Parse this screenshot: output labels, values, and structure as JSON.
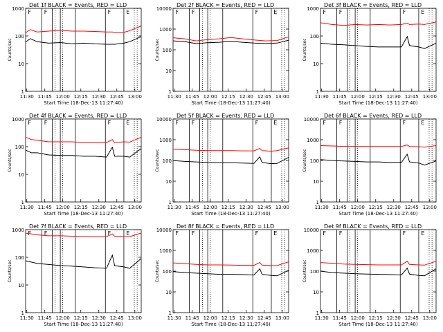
{
  "colors": {
    "events": "#000000",
    "lld": "#ff0000",
    "axis": "#000000",
    "background": "#ffffff"
  },
  "chart_data": [
    {
      "type": "line",
      "detector": "1",
      "title": "Det 1f BLACK = Events, RED = LLD",
      "ylabel": "Counts/sec",
      "xlabel": "Start Time (18-Dec-13 11:27:40)",
      "yscale": "log",
      "ylim": [
        1,
        1000
      ],
      "y_ticks": [
        "1",
        "10",
        "100",
        "1000"
      ],
      "x_ticks": [
        "11:30",
        "11:45",
        "12:00",
        "12:15",
        "12:30",
        "12:45",
        "13:00"
      ],
      "corner_label": "E",
      "series": [
        {
          "name": "BLACK = Events",
          "x": [
            0,
            0.04,
            0.1,
            0.2,
            0.3,
            0.4,
            0.5,
            0.6,
            0.7,
            0.75,
            0.77,
            0.85,
            0.9,
            1.0
          ],
          "y": [
            60,
            80,
            62,
            55,
            58,
            52,
            55,
            52,
            50,
            50,
            50,
            55,
            62,
            95
          ]
        },
        {
          "name": "RED = LLD",
          "x": [
            0,
            0.04,
            0.1,
            0.2,
            0.3,
            0.4,
            0.5,
            0.6,
            0.7,
            0.75,
            0.77,
            0.85,
            0.9,
            1.0
          ],
          "y": [
            130,
            170,
            140,
            150,
            160,
            150,
            150,
            145,
            140,
            140,
            135,
            135,
            155,
            230
          ]
        }
      ]
    },
    {
      "type": "line",
      "detector": "2",
      "title": "Det 2f BLACK = Events, RED = LLD",
      "ylabel": "Counts/sec",
      "xlabel": "Start Time (18-Dec-13 11:27:40)",
      "yscale": "log",
      "ylim": [
        1,
        10000
      ],
      "y_ticks": [
        "1",
        "10",
        "100",
        "1000",
        "10000"
      ],
      "x_ticks": [
        "11:30",
        "11:45",
        "12:00",
        "12:15",
        "12:30",
        "12:45",
        "13:00"
      ],
      "corner_label": "E",
      "series": [
        {
          "name": "BLACK = Events",
          "x": [
            0,
            0.1,
            0.2,
            0.3,
            0.4,
            0.5,
            0.6,
            0.7,
            0.8,
            0.9,
            1.0
          ],
          "y": [
            270,
            250,
            200,
            220,
            230,
            260,
            230,
            210,
            200,
            210,
            290
          ]
        },
        {
          "name": "RED = LLD",
          "x": [
            0,
            0.1,
            0.2,
            0.3,
            0.4,
            0.5,
            0.6,
            0.7,
            0.8,
            0.9,
            1.0
          ],
          "y": [
            380,
            340,
            270,
            310,
            340,
            390,
            340,
            300,
            270,
            280,
            420
          ]
        }
      ]
    },
    {
      "type": "line",
      "detector": "3",
      "title": "Det 3f BLACK = Events, RED = LLD",
      "ylabel": "Counts/sec",
      "xlabel": "Start Time (18-Dec-13 11:27:40)",
      "yscale": "log",
      "ylim": [
        1,
        1000
      ],
      "y_ticks": [
        "1",
        "10",
        "100",
        "1000"
      ],
      "x_ticks": [
        "11:30",
        "11:45",
        "12:00",
        "12:15",
        "12:30",
        "12:45",
        "13:00"
      ],
      "corner_label": "E",
      "series": [
        {
          "name": "BLACK = Events",
          "x": [
            0,
            0.1,
            0.2,
            0.3,
            0.4,
            0.5,
            0.6,
            0.7,
            0.75,
            0.77,
            0.85,
            0.9,
            1.0
          ],
          "y": [
            55,
            50,
            48,
            45,
            42,
            40,
            40,
            40,
            95,
            45,
            40,
            35,
            55
          ]
        },
        {
          "name": "RED = LLD",
          "x": [
            0,
            0.1,
            0.2,
            0.3,
            0.4,
            0.5,
            0.6,
            0.7,
            0.75,
            0.77,
            0.85,
            0.9,
            1.0
          ],
          "y": [
            300,
            260,
            240,
            260,
            250,
            260,
            250,
            260,
            290,
            260,
            270,
            260,
            320
          ]
        }
      ]
    },
    {
      "type": "line",
      "detector": "4",
      "title": "Det 4f BLACK = Events, RED = LLD",
      "ylabel": "Counts/sec",
      "xlabel": "Start Time (18-Dec-13 11:27:40)",
      "yscale": "log",
      "ylim": [
        1,
        1000
      ],
      "y_ticks": [
        "1",
        "10",
        "100",
        "1000"
      ],
      "x_ticks": [
        "11:30",
        "11:45",
        "12:00",
        "12:15",
        "12:30",
        "12:45",
        "13:00"
      ],
      "corner_label": "E",
      "series": [
        {
          "name": "BLACK = Events",
          "x": [
            0,
            0.05,
            0.1,
            0.2,
            0.3,
            0.4,
            0.5,
            0.6,
            0.7,
            0.75,
            0.77,
            0.85,
            0.9,
            1.0
          ],
          "y": [
            75,
            60,
            60,
            50,
            48,
            48,
            45,
            45,
            42,
            95,
            45,
            45,
            42,
            85
          ]
        },
        {
          "name": "RED = LLD",
          "x": [
            0,
            0.05,
            0.1,
            0.2,
            0.3,
            0.4,
            0.5,
            0.6,
            0.7,
            0.75,
            0.77,
            0.85,
            0.9,
            1.0
          ],
          "y": [
            220,
            180,
            170,
            150,
            150,
            150,
            140,
            140,
            140,
            180,
            140,
            150,
            145,
            220
          ]
        }
      ]
    },
    {
      "type": "line",
      "detector": "5",
      "title": "Det 5f BLACK = Events, RED = LLD",
      "ylabel": "Counts/sec",
      "xlabel": "Start Time (18-Dec-13 11:27:40)",
      "yscale": "log",
      "ylim": [
        1,
        10000
      ],
      "y_ticks": [
        "1",
        "10",
        "100",
        "1000",
        "10000"
      ],
      "x_ticks": [
        "11:30",
        "11:45",
        "12:00",
        "12:15",
        "12:30",
        "12:45",
        "13:00"
      ],
      "corner_label": "E",
      "series": [
        {
          "name": "BLACK = Events",
          "x": [
            0,
            0.1,
            0.2,
            0.3,
            0.4,
            0.5,
            0.6,
            0.7,
            0.75,
            0.77,
            0.85,
            0.9,
            1.0
          ],
          "y": [
            100,
            90,
            85,
            80,
            78,
            78,
            75,
            72,
            150,
            80,
            70,
            72,
            140
          ]
        },
        {
          "name": "RED = LLD",
          "x": [
            0,
            0.1,
            0.2,
            0.3,
            0.4,
            0.5,
            0.6,
            0.7,
            0.75,
            0.77,
            0.85,
            0.9,
            1.0
          ],
          "y": [
            350,
            330,
            310,
            300,
            300,
            300,
            290,
            290,
            380,
            300,
            280,
            300,
            400
          ]
        }
      ]
    },
    {
      "type": "line",
      "detector": "6",
      "title": "Det 6f BLACK = Events, RED = LLD",
      "ylabel": "Counts/sec",
      "xlabel": "Start Time (18-Dec-13 11:27:40)",
      "yscale": "log",
      "ylim": [
        1,
        10000
      ],
      "y_ticks": [
        "1",
        "10",
        "100",
        "1000",
        "10000"
      ],
      "x_ticks": [
        "11:30",
        "11:45",
        "12:00",
        "12:15",
        "12:30",
        "12:45",
        "13:00"
      ],
      "corner_label": "E",
      "series": [
        {
          "name": "BLACK = Events",
          "x": [
            0,
            0.1,
            0.2,
            0.3,
            0.4,
            0.5,
            0.6,
            0.7,
            0.75,
            0.77,
            0.85,
            0.9,
            1.0
          ],
          "y": [
            110,
            100,
            95,
            90,
            85,
            85,
            80,
            80,
            200,
            85,
            75,
            60,
            95
          ]
        },
        {
          "name": "RED = LLD",
          "x": [
            0,
            0.1,
            0.2,
            0.3,
            0.4,
            0.5,
            0.6,
            0.7,
            0.75,
            0.77,
            0.85,
            0.9,
            1.0
          ],
          "y": [
            520,
            500,
            480,
            480,
            470,
            470,
            470,
            470,
            560,
            470,
            460,
            440,
            520
          ]
        }
      ]
    },
    {
      "type": "line",
      "detector": "7",
      "title": "Det 7f BLACK = Events, RED = LLD",
      "ylabel": "Counts/sec",
      "xlabel": "Start Time (18-Dec-13 11:27:40)",
      "yscale": "log",
      "ylim": [
        1,
        1000
      ],
      "y_ticks": [
        "1",
        "10",
        "100",
        "1000"
      ],
      "x_ticks": [
        "11:30",
        "11:45",
        "12:00",
        "12:15",
        "12:30",
        "12:45",
        "13:00"
      ],
      "corner_label": "E",
      "series": [
        {
          "name": "BLACK = Events",
          "x": [
            0,
            0.1,
            0.2,
            0.3,
            0.4,
            0.5,
            0.6,
            0.7,
            0.75,
            0.77,
            0.85,
            0.9,
            1.0
          ],
          "y": [
            75,
            60,
            55,
            50,
            48,
            45,
            42,
            40,
            120,
            50,
            45,
            40,
            90
          ]
        },
        {
          "name": "RED = LLD",
          "x": [
            0,
            0.1,
            0.2,
            0.3,
            0.4,
            0.5,
            0.6,
            0.7,
            0.75,
            0.77,
            0.85,
            0.9,
            1.0
          ],
          "y": [
            750,
            650,
            600,
            600,
            580,
            560,
            560,
            560,
            700,
            580,
            560,
            560,
            750
          ]
        }
      ]
    },
    {
      "type": "line",
      "detector": "8",
      "title": "Det 8f BLACK = Events, RED = LLD",
      "ylabel": "Counts/sec",
      "xlabel": "Start Time (18-Dec-13 11:27:40)",
      "yscale": "log",
      "ylim": [
        1,
        10000
      ],
      "y_ticks": [
        "1",
        "10",
        "100",
        "1000",
        "10000"
      ],
      "x_ticks": [
        "11:30",
        "11:45",
        "12:00",
        "12:15",
        "12:30",
        "12:45",
        "13:00"
      ],
      "corner_label": "E",
      "series": [
        {
          "name": "BLACK = Events",
          "x": [
            0,
            0.1,
            0.2,
            0.3,
            0.4,
            0.5,
            0.6,
            0.7,
            0.75,
            0.77,
            0.85,
            0.9,
            1.0
          ],
          "y": [
            95,
            85,
            80,
            75,
            70,
            70,
            68,
            65,
            130,
            70,
            62,
            60,
            110
          ]
        },
        {
          "name": "RED = LLD",
          "x": [
            0,
            0.1,
            0.2,
            0.3,
            0.4,
            0.5,
            0.6,
            0.7,
            0.75,
            0.77,
            0.85,
            0.9,
            1.0
          ],
          "y": [
            250,
            230,
            210,
            200,
            200,
            195,
            190,
            190,
            260,
            195,
            185,
            185,
            280
          ]
        }
      ]
    },
    {
      "type": "line",
      "detector": "9",
      "title": "Det 9f BLACK = Events, RED = LLD",
      "ylabel": "Counts/sec",
      "xlabel": "Start Time (18-Dec-13 11:27:40)",
      "yscale": "log",
      "ylim": [
        1,
        10000
      ],
      "y_ticks": [
        "1",
        "10",
        "100",
        "1000",
        "10000"
      ],
      "x_ticks": [
        "11:30",
        "11:45",
        "12:00",
        "12:15",
        "12:30",
        "12:45",
        "13:00"
      ],
      "corner_label": "E",
      "series": [
        {
          "name": "BLACK = Events",
          "x": [
            0,
            0.1,
            0.2,
            0.3,
            0.4,
            0.5,
            0.6,
            0.7,
            0.75,
            0.77,
            0.85,
            0.9,
            1.0
          ],
          "y": [
            100,
            85,
            80,
            75,
            72,
            70,
            68,
            65,
            140,
            72,
            62,
            60,
            130
          ]
        },
        {
          "name": "RED = LLD",
          "x": [
            0,
            0.1,
            0.2,
            0.3,
            0.4,
            0.5,
            0.6,
            0.7,
            0.75,
            0.77,
            0.85,
            0.9,
            1.0
          ],
          "y": [
            260,
            240,
            220,
            210,
            205,
            200,
            200,
            200,
            300,
            210,
            200,
            195,
            300
          ]
        }
      ]
    }
  ]
}
